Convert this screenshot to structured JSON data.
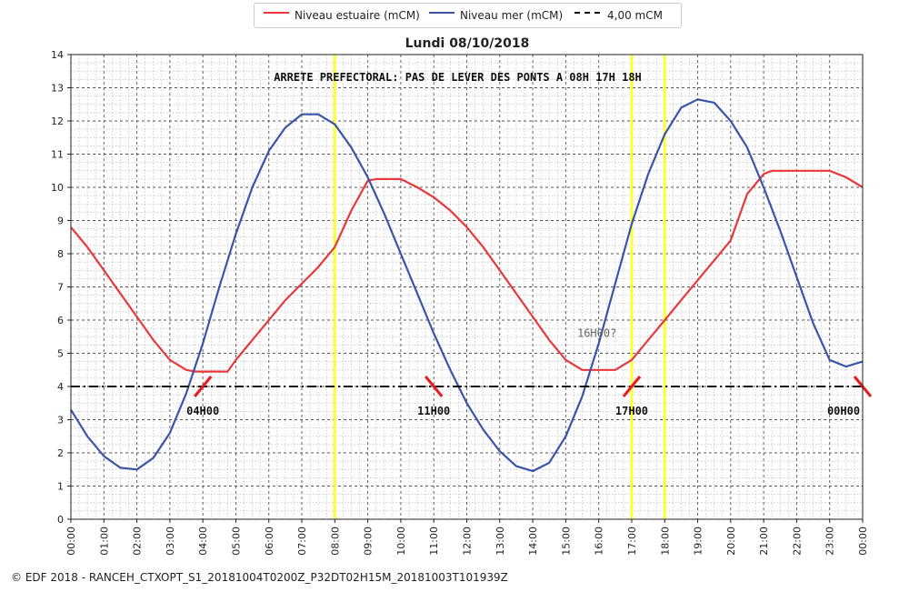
{
  "chart_data": {
    "type": "line",
    "title": "Lundi 08/10/2018",
    "xlabel": "",
    "ylabel": "",
    "ylim": [
      0,
      14
    ],
    "xlim": [
      0,
      24
    ],
    "yticks": [
      "0",
      "1",
      "2",
      "3",
      "4",
      "5",
      "6",
      "7",
      "8",
      "9",
      "10",
      "11",
      "12",
      "13",
      "14"
    ],
    "xticks": [
      "00:00",
      "01:00",
      "02:00",
      "03:00",
      "04:00",
      "05:00",
      "06:00",
      "07:00",
      "08:00",
      "09:00",
      "10:00",
      "11:00",
      "12:00",
      "13:00",
      "14:00",
      "15:00",
      "16:00",
      "17:00",
      "18:00",
      "19:00",
      "20:00",
      "21:00",
      "22:00",
      "23:00",
      "00:00"
    ],
    "grid": true,
    "legend_position": "top",
    "series": [
      {
        "name": "Niveau estuaire (mCM)",
        "color": "#e8383b",
        "x": [
          0,
          0.5,
          1,
          1.5,
          2,
          2.5,
          3,
          3.5,
          3.75,
          4,
          4.5,
          4.75,
          5,
          5.5,
          6,
          6.5,
          7,
          7.5,
          8,
          8.5,
          9,
          9.25,
          9.5,
          10,
          10.5,
          11,
          11.5,
          12,
          12.5,
          13,
          13.5,
          14,
          14.5,
          15,
          15.5,
          16,
          16.25,
          16.5,
          17,
          17.5,
          18,
          18.5,
          19,
          19.5,
          20,
          20.5,
          21,
          21.25,
          21.5,
          22,
          22.5,
          23,
          23.5,
          24
        ],
        "values": [
          8.8,
          8.2,
          7.5,
          6.8,
          6.1,
          5.4,
          4.8,
          4.5,
          4.45,
          4.45,
          4.45,
          4.45,
          4.8,
          5.4,
          6.0,
          6.6,
          7.1,
          7.6,
          8.2,
          9.3,
          10.2,
          10.25,
          10.25,
          10.25,
          10.0,
          9.7,
          9.3,
          8.8,
          8.2,
          7.5,
          6.8,
          6.1,
          5.4,
          4.8,
          4.5,
          4.5,
          4.5,
          4.5,
          4.8,
          5.4,
          6.0,
          6.6,
          7.2,
          7.8,
          8.4,
          9.8,
          10.4,
          10.5,
          10.5,
          10.5,
          10.5,
          10.5,
          10.3,
          10.0
        ]
      },
      {
        "name": "Niveau mer (mCM)",
        "color": "#3a55a8",
        "x": [
          0,
          0.5,
          1,
          1.5,
          2,
          2.5,
          3,
          3.5,
          4,
          4.5,
          5,
          5.5,
          6,
          6.5,
          7,
          7.5,
          8,
          8.5,
          9,
          9.5,
          10,
          10.5,
          11,
          11.5,
          12,
          12.5,
          13,
          13.5,
          14,
          14.5,
          15,
          15.5,
          16,
          16.5,
          17,
          17.5,
          18,
          18.5,
          19,
          19.5,
          20,
          20.5,
          21,
          21.5,
          22,
          22.5,
          23,
          23.5,
          24
        ],
        "values": [
          3.3,
          2.5,
          1.9,
          1.55,
          1.5,
          1.85,
          2.6,
          3.8,
          5.3,
          7.0,
          8.6,
          10.0,
          11.1,
          11.8,
          12.2,
          12.2,
          11.9,
          11.2,
          10.3,
          9.2,
          8.0,
          6.8,
          5.6,
          4.5,
          3.5,
          2.7,
          2.05,
          1.6,
          1.45,
          1.7,
          2.5,
          3.7,
          5.3,
          7.1,
          8.9,
          10.4,
          11.6,
          12.4,
          12.65,
          12.55,
          12.0,
          11.2,
          10.0,
          8.7,
          7.3,
          5.9,
          4.8,
          4.6,
          4.75
        ]
      },
      {
        "name": "4,00 mCM",
        "color": "#111111",
        "dash": "dashdot",
        "x": [
          0,
          24
        ],
        "values": [
          4,
          4
        ]
      }
    ],
    "vertical_markers": [
      {
        "x": 8,
        "color": "#ffff33"
      },
      {
        "x": 17,
        "color": "#ffff33"
      },
      {
        "x": 18,
        "color": "#ffff33"
      }
    ],
    "crossing_markers": [
      {
        "x": 4.0,
        "label": "04H00",
        "direction": "up"
      },
      {
        "x": 11.0,
        "label": "11H00",
        "direction": "down"
      },
      {
        "x": 17.0,
        "label": "17H00",
        "direction": "up"
      },
      {
        "x": 24.0,
        "label": "00H00",
        "direction": "down"
      }
    ],
    "annotations": [
      {
        "text": "ARRETE PREFECTORAL: PAS DE LEVER DES PONTS A 08H 17H 18H",
        "x": 12,
        "y": 13.2
      },
      {
        "text": "16H00?",
        "x": 16,
        "y": 5.6
      }
    ]
  },
  "legend": {
    "items": [
      "Niveau estuaire (mCM)",
      "Niveau mer (mCM)",
      "4,00 mCM"
    ]
  },
  "footer": {
    "text": "© EDF 2018 - RANCEH_CTXOPT_S1_20181004T0200Z_P32DT02H15M_20181003T101939Z"
  }
}
